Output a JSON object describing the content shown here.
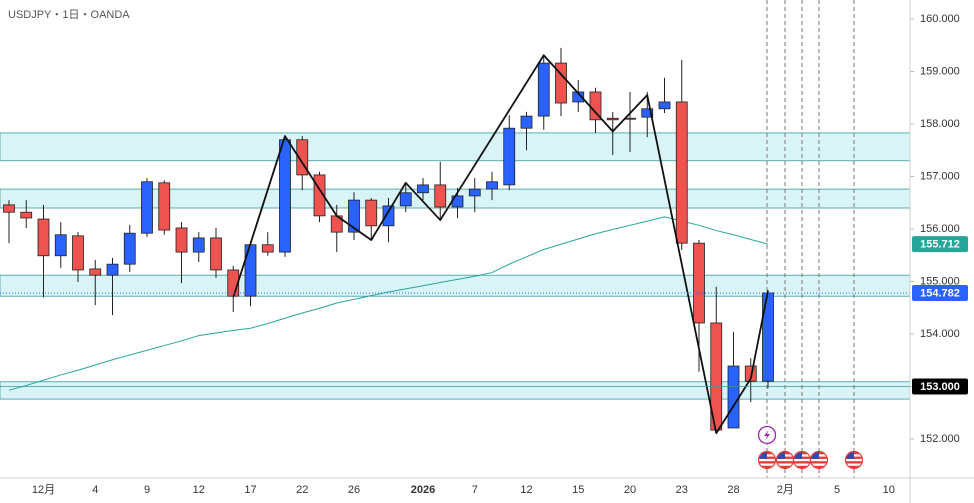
{
  "chart_data": {
    "type": "candlestick",
    "title": "USDJPY・1日・OANDA",
    "categories": [
      null,
      null,
      "12月",
      null,
      null,
      "4",
      null,
      null,
      "9",
      null,
      null,
      "12",
      null,
      null,
      "17",
      null,
      null,
      "22",
      null,
      null,
      "26",
      null,
      null,
      null,
      "2026",
      null,
      null,
      "7",
      null,
      null,
      "12",
      null,
      null,
      "15",
      null,
      null,
      "20",
      null,
      null,
      "23",
      null,
      null,
      "28",
      null,
      null,
      "2月",
      null,
      null,
      "5",
      null,
      null,
      "10"
    ],
    "open": [
      156.46,
      156.32,
      156.19,
      155.49,
      155.87,
      155.24,
      155.12,
      155.33,
      155.92,
      156.88,
      156.02,
      155.56,
      155.83,
      155.22,
      154.72,
      155.7,
      155.56,
      157.7,
      157.03,
      156.25,
      155.94,
      156.55,
      156.06,
      156.44,
      156.69,
      156.84,
      156.42,
      156.63,
      156.76,
      156.84,
      157.92,
      158.15,
      159.16,
      158.42,
      158.61,
      158.11,
      158.11,
      158.13,
      158.29,
      158.42,
      155.73,
      154.21,
      152.21,
      153.39,
      153.1,
      null,
      null,
      null,
      null,
      null,
      null,
      null
    ],
    "high": [
      156.55,
      156.55,
      156.46,
      156.13,
      155.94,
      155.41,
      155.45,
      156.08,
      156.97,
      156.93,
      156.13,
      155.94,
      156.02,
      155.3,
      155.77,
      155.94,
      157.77,
      157.77,
      157.09,
      156.46,
      156.7,
      156.59,
      156.59,
      156.88,
      156.97,
      157.28,
      156.78,
      156.97,
      157.09,
      158.17,
      158.23,
      159.31,
      159.45,
      158.84,
      158.69,
      158.23,
      158.61,
      158.61,
      158.88,
      159.22,
      155.79,
      154.9,
      154.04,
      153.54,
      154.84,
      null,
      null,
      null,
      null,
      null,
      null,
      null
    ],
    "low": [
      155.73,
      156.02,
      154.7,
      155.26,
      154.99,
      154.55,
      154.36,
      155.18,
      155.85,
      155.89,
      154.97,
      155.37,
      155.07,
      154.42,
      154.53,
      155.49,
      155.47,
      156.74,
      156.13,
      155.56,
      155.79,
      155.79,
      155.75,
      156.32,
      156.55,
      156.17,
      156.21,
      156.32,
      156.55,
      156.74,
      157.5,
      157.89,
      158.15,
      158.23,
      157.83,
      157.41,
      157.47,
      157.75,
      158.21,
      155.6,
      153.28,
      152.11,
      152.21,
      152.7,
      152.97,
      null,
      null,
      null,
      null,
      null,
      null,
      null
    ],
    "close": [
      156.32,
      156.21,
      155.49,
      155.89,
      155.22,
      155.12,
      155.33,
      155.92,
      156.9,
      155.98,
      155.56,
      155.83,
      155.22,
      154.72,
      155.7,
      155.56,
      157.7,
      157.03,
      156.25,
      155.94,
      156.55,
      156.06,
      156.44,
      156.69,
      156.84,
      156.42,
      156.63,
      156.76,
      156.9,
      157.92,
      158.15,
      159.16,
      158.4,
      158.61,
      158.08,
      158.08,
      158.1,
      158.29,
      158.42,
      155.73,
      154.21,
      152.17,
      153.39,
      153.1,
      154.782,
      null,
      null,
      null,
      null,
      null,
      null,
      null
    ],
    "ma": [
      152.93,
      153.02,
      153.12,
      153.22,
      153.31,
      153.41,
      153.51,
      153.6,
      153.69,
      153.78,
      153.87,
      153.97,
      154.02,
      154.07,
      154.11,
      154.2,
      154.3,
      154.4,
      154.49,
      154.59,
      154.66,
      154.73,
      154.8,
      154.86,
      154.92,
      154.98,
      155.04,
      155.1,
      155.17,
      155.33,
      155.47,
      155.61,
      155.71,
      155.81,
      155.91,
      155.99,
      156.07,
      156.15,
      156.23,
      156.15,
      156.07,
      155.97,
      155.89,
      155.8,
      155.712,
      null,
      null,
      null,
      null,
      null,
      null,
      null
    ],
    "up_color": "#2962ff",
    "down_color": "#ef5350",
    "ma_color": "#26a69a",
    "zigzag": {
      "x": [
        13,
        16,
        19,
        21,
        23,
        25,
        31,
        35,
        37,
        41,
        43,
        44
      ],
      "values": [
        154.7,
        157.77,
        156.25,
        155.79,
        156.88,
        156.17,
        159.31,
        157.86,
        158.55,
        152.11,
        153.15,
        154.82
      ]
    },
    "zones": [
      {
        "low": 157.3,
        "high": 157.83
      },
      {
        "low": 156.4,
        "high": 156.76
      },
      {
        "low": 154.72,
        "high": 155.12
      },
      {
        "low": 152.76,
        "high": 153.09
      }
    ],
    "markers": [
      {
        "value": 155.712,
        "label": "155.712",
        "color": "#26a69a"
      },
      {
        "value": 154.782,
        "label": "154.782",
        "color": "#2962ff"
      },
      {
        "value": 153.0,
        "label": "153.000",
        "color": "#000000"
      }
    ],
    "ylim": [
      151.257,
      160.362
    ],
    "yticks": [
      {
        "value": 152,
        "label": "152.000"
      },
      {
        "value": 153,
        "label": "153.000"
      },
      {
        "value": 154,
        "label": "154.000"
      },
      {
        "value": 155,
        "label": "155.000"
      },
      {
        "value": 156,
        "label": "156.000"
      },
      {
        "value": 157,
        "label": "157.000"
      },
      {
        "value": 158,
        "label": "158.000"
      },
      {
        "value": 159,
        "label": "159.000"
      },
      {
        "value": 160,
        "label": "160.000"
      }
    ]
  }
}
